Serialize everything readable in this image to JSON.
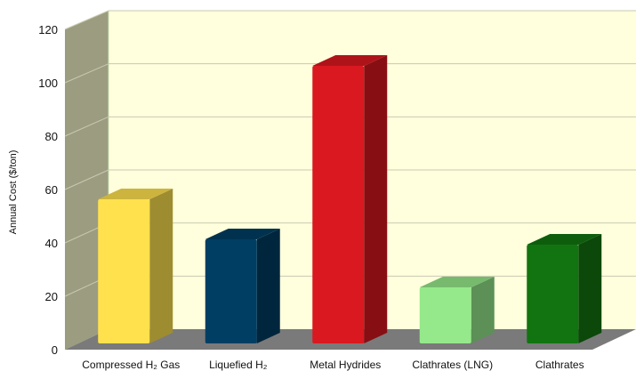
{
  "chart_data": {
    "type": "bar",
    "title": "",
    "xlabel": "",
    "ylabel": "Annual Cost ($/ton)",
    "ylim": [
      0,
      120
    ],
    "yticks": [
      0,
      20,
      40,
      60,
      80,
      100,
      120
    ],
    "grid": true,
    "legend": "none",
    "three_d": true,
    "categories": [
      "Compressed H₂ Gas",
      "Liquefied H₂",
      "Metal Hydrides",
      "Clathrates (LNG)",
      "Clathrates"
    ],
    "values": [
      54,
      39,
      104,
      21,
      37
    ],
    "colors": [
      "#ffe14d",
      "#003e63",
      "#d9181f",
      "#95e98a",
      "#127410"
    ],
    "wall_color": "#ffffdd",
    "side_wall_color": "#9c9c80",
    "floor_color": "#7a7a7a"
  }
}
